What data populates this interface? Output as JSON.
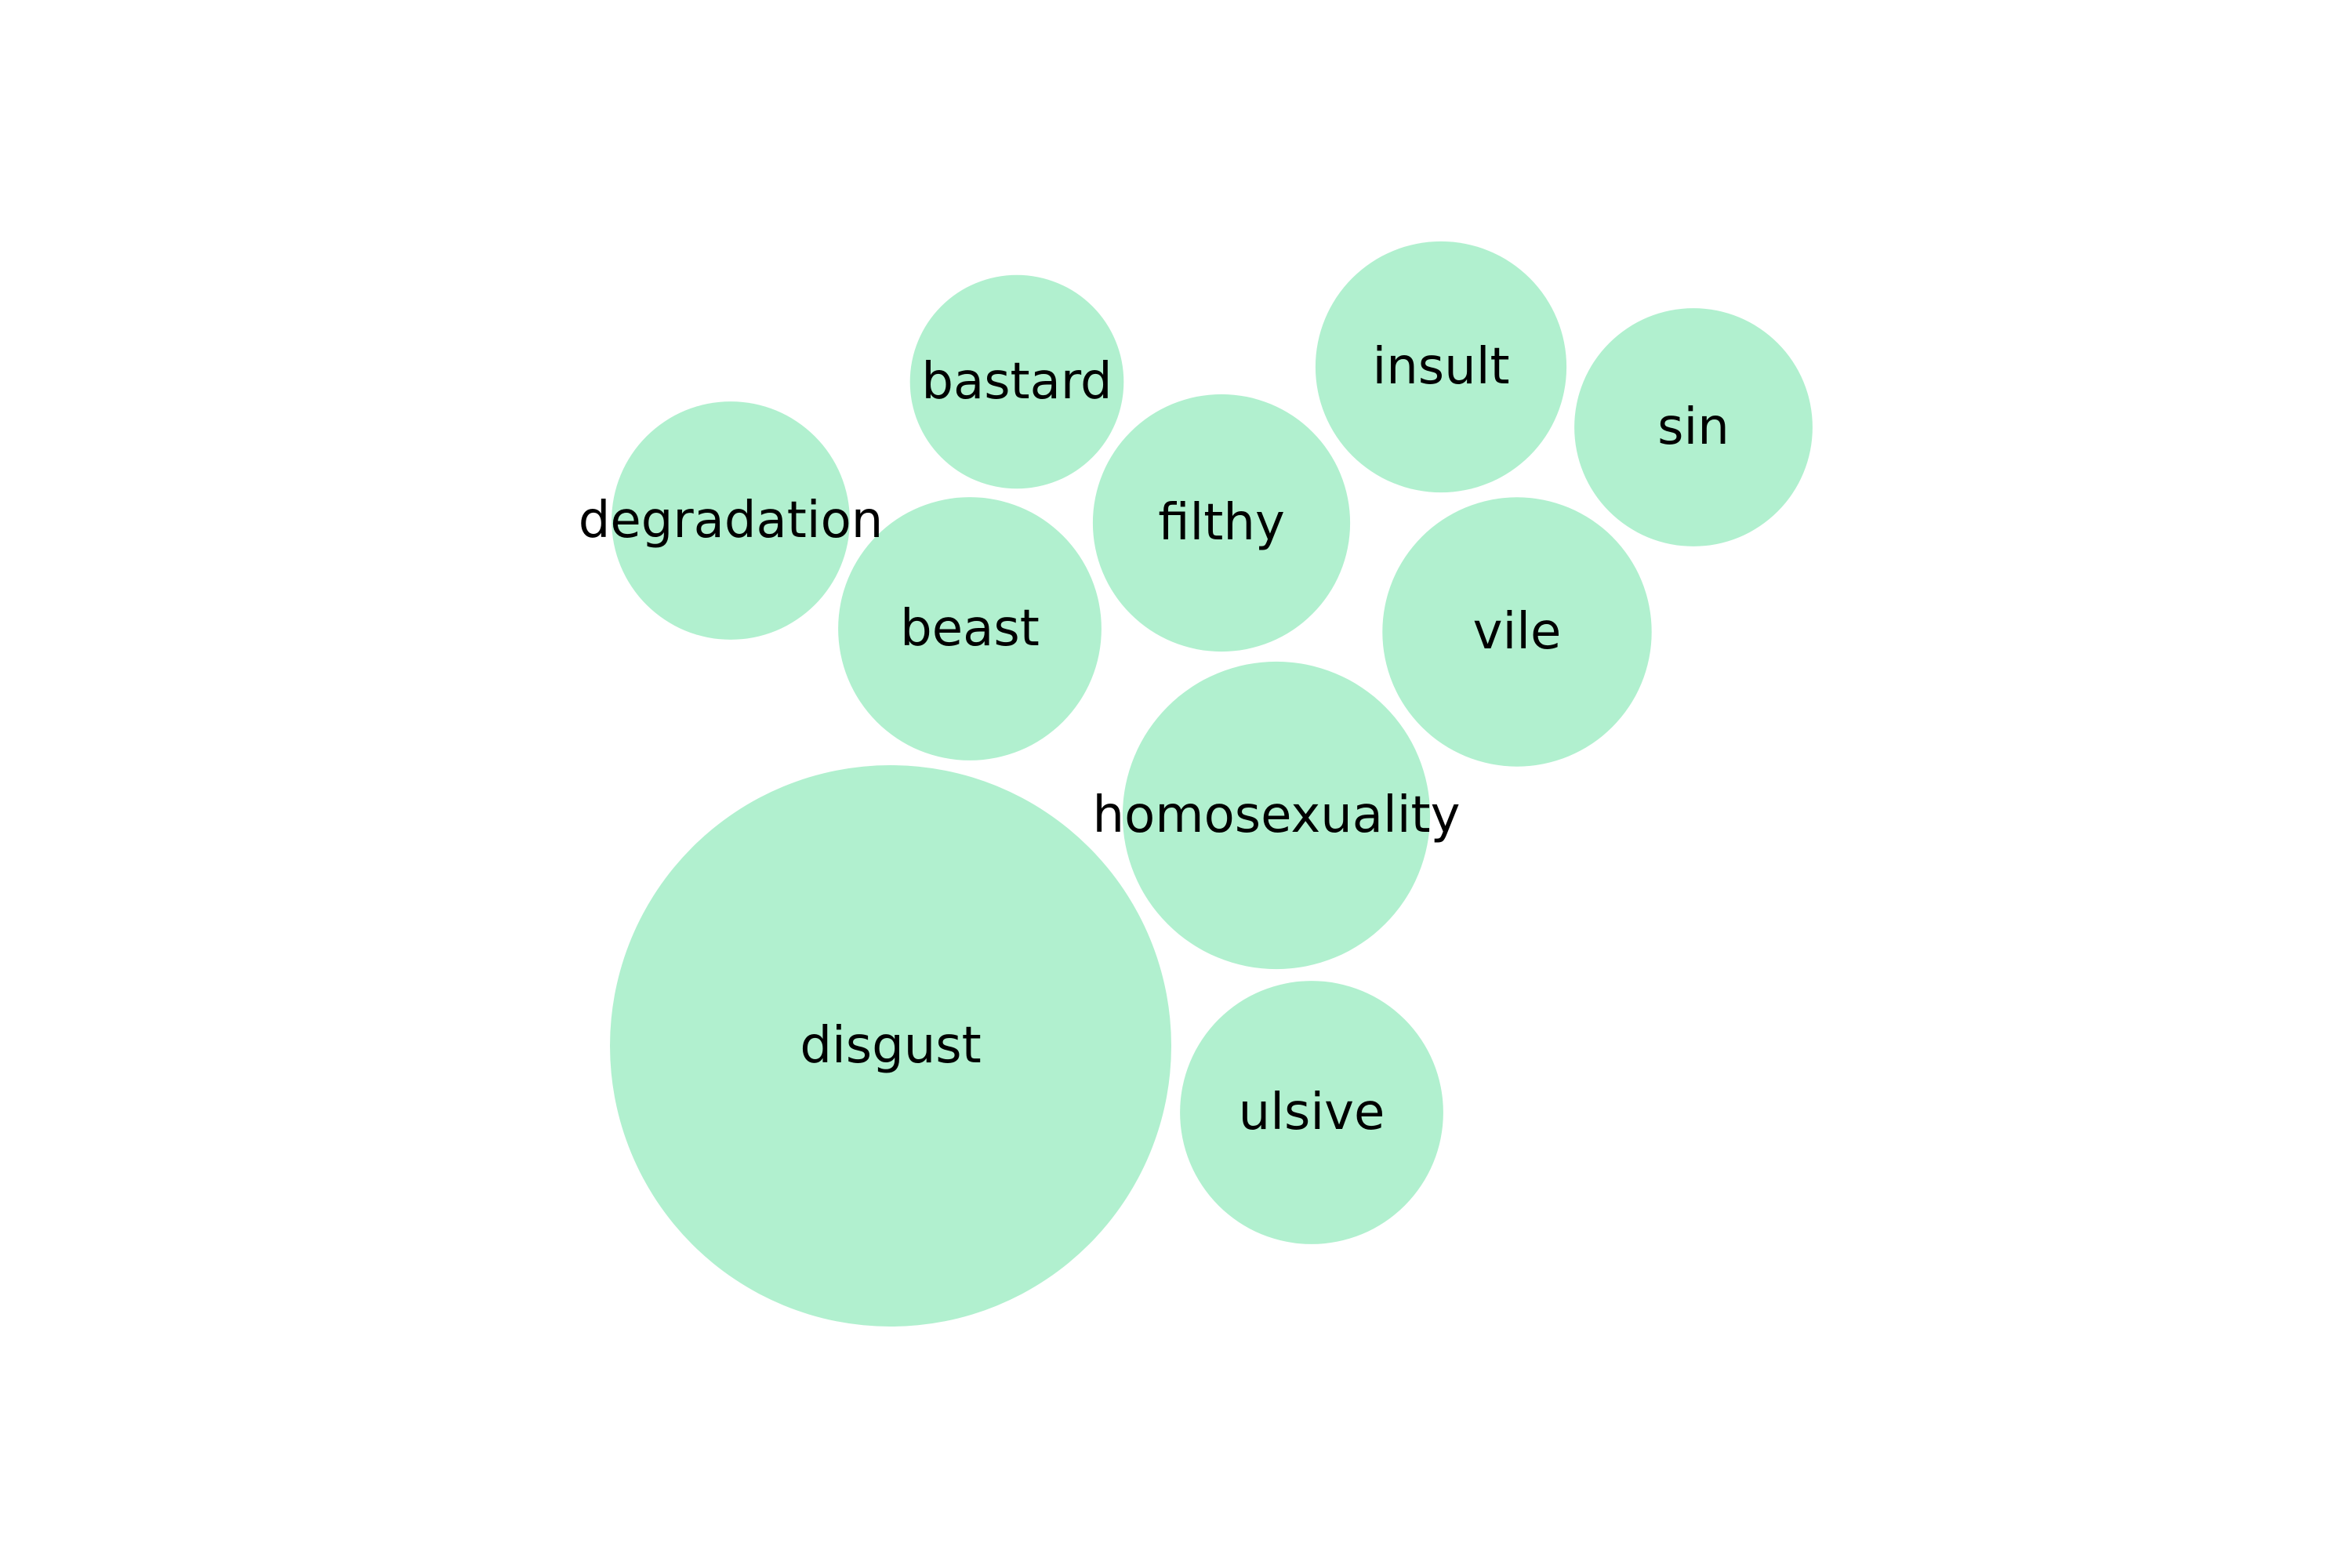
{
  "chart_data": {
    "type": "bubble",
    "fill_color": "#b1f0cf",
    "label_color": "#000000",
    "background": "#ffffff",
    "bubbles": [
      {
        "label": "disgust",
        "value": 10
      },
      {
        "label": "homosexuality",
        "value": 3
      },
      {
        "label": "vile",
        "value": 2.3
      },
      {
        "label": "beast",
        "value": 2.2
      },
      {
        "label": "filthy",
        "value": 2.1
      },
      {
        "label": "ulsive",
        "value": 2.2
      },
      {
        "label": "insult",
        "value": 2
      },
      {
        "label": "sin",
        "value": 1.8
      },
      {
        "label": "degradation",
        "value": 1.8
      },
      {
        "label": "bastard",
        "value": 1.45
      }
    ]
  }
}
